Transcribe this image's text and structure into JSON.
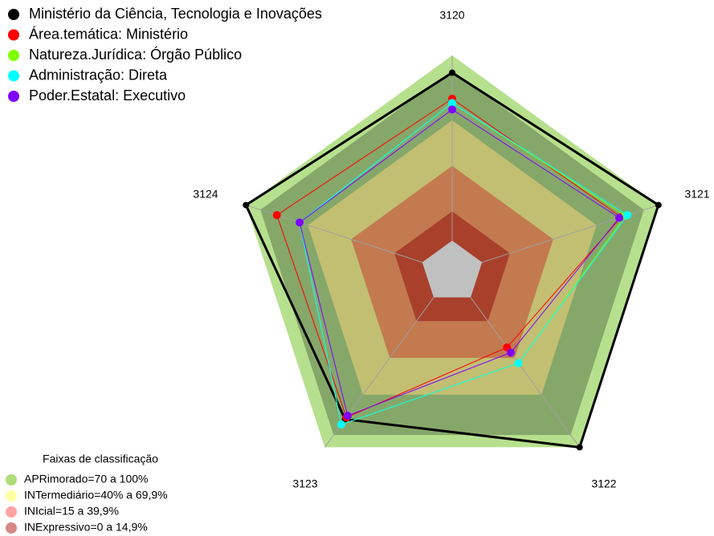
{
  "chart_data": {
    "type": "radar",
    "categories": [
      "3120",
      "3121",
      "3122",
      "3123",
      "3124"
    ],
    "rlim": [
      0,
      100
    ],
    "series": [
      {
        "name": "Ministério da Ciência, Tecnologia e Inovações",
        "color": "#000000",
        "values": [
          92,
          100,
          100,
          84,
          100
        ]
      },
      {
        "name": "Área.temática: Ministério",
        "color": "#ff0000",
        "values": [
          80,
          82,
          43,
          83,
          85
        ]
      },
      {
        "name": "Natureza.Jurídica: Órgão Público",
        "color": "#7fff00",
        "values": [
          78,
          84,
          52,
          87,
          74
        ]
      },
      {
        "name": "Administração: Direta",
        "color": "#00ffff",
        "values": [
          78,
          85,
          52,
          87,
          74
        ]
      },
      {
        "name": "Poder.Estatal: Executivo",
        "color": "#8000ff",
        "values": [
          75,
          81,
          46,
          82,
          74
        ]
      }
    ],
    "legend_title": "Faixas de classificação",
    "bands": [
      {
        "name": "APRimorado=70 a 100%",
        "color": "#a6d96a"
      },
      {
        "name": "INTermediário=40% a 69,9%",
        "color": "#ffff99"
      },
      {
        "name": "INIcial=15 a 39,9%",
        "color": "#ff9999"
      },
      {
        "name": "INExpressivo=0 a 14,9%",
        "color": "#d47a7a"
      }
    ]
  }
}
